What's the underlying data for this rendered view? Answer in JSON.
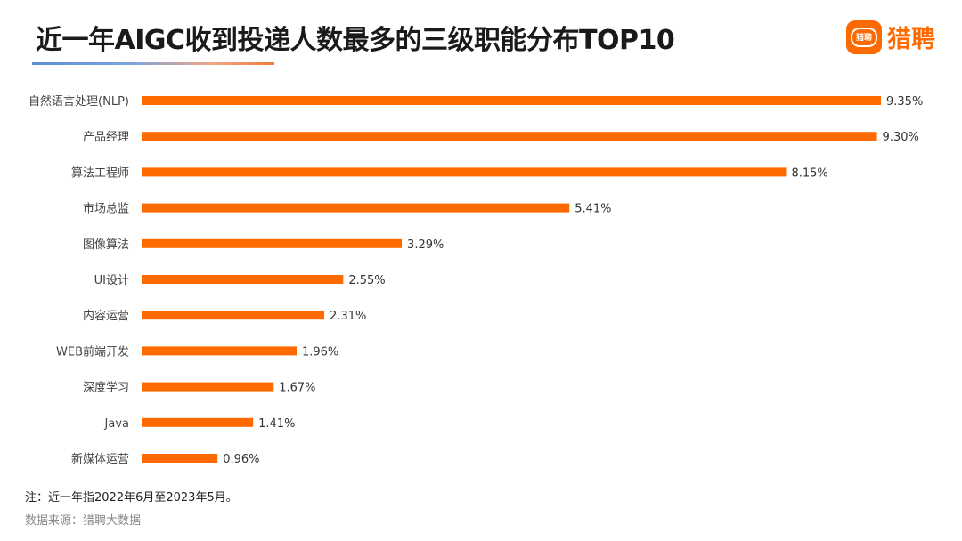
{
  "header": {
    "title": "近一年AIGC收到投递人数最多的三级职能分布TOP10",
    "logo_badge_text": "猎聘",
    "logo_text": "猎聘"
  },
  "colors": {
    "bar": "#ff6a00",
    "brand": "#ff6a00"
  },
  "chart_data": {
    "type": "bar",
    "orientation": "horizontal",
    "title": "近一年AIGC收到投递人数最多的三级职能分布TOP10",
    "categories": [
      "自然语言处理(NLP)",
      "产品经理",
      "算法工程师",
      "市场总监",
      "图像算法",
      "UI设计",
      "内容运营",
      "WEB前端开发",
      "深度学习",
      "Java",
      "新媒体运营"
    ],
    "values": [
      9.35,
      9.3,
      8.15,
      5.41,
      3.29,
      2.55,
      2.31,
      1.96,
      1.67,
      1.41,
      0.96
    ],
    "value_labels": [
      "9.35%",
      "9.30%",
      "8.15%",
      "5.41%",
      "3.29%",
      "2.55%",
      "2.31%",
      "1.96%",
      "1.67%",
      "1.41%",
      "0.96%"
    ],
    "unit": "%",
    "xlim": [
      0,
      9.35
    ],
    "grid": false,
    "legend": "none"
  },
  "footer": {
    "note": "注：近一年指2022年6月至2023年5月。",
    "source": "数据来源：猎聘大数据"
  }
}
